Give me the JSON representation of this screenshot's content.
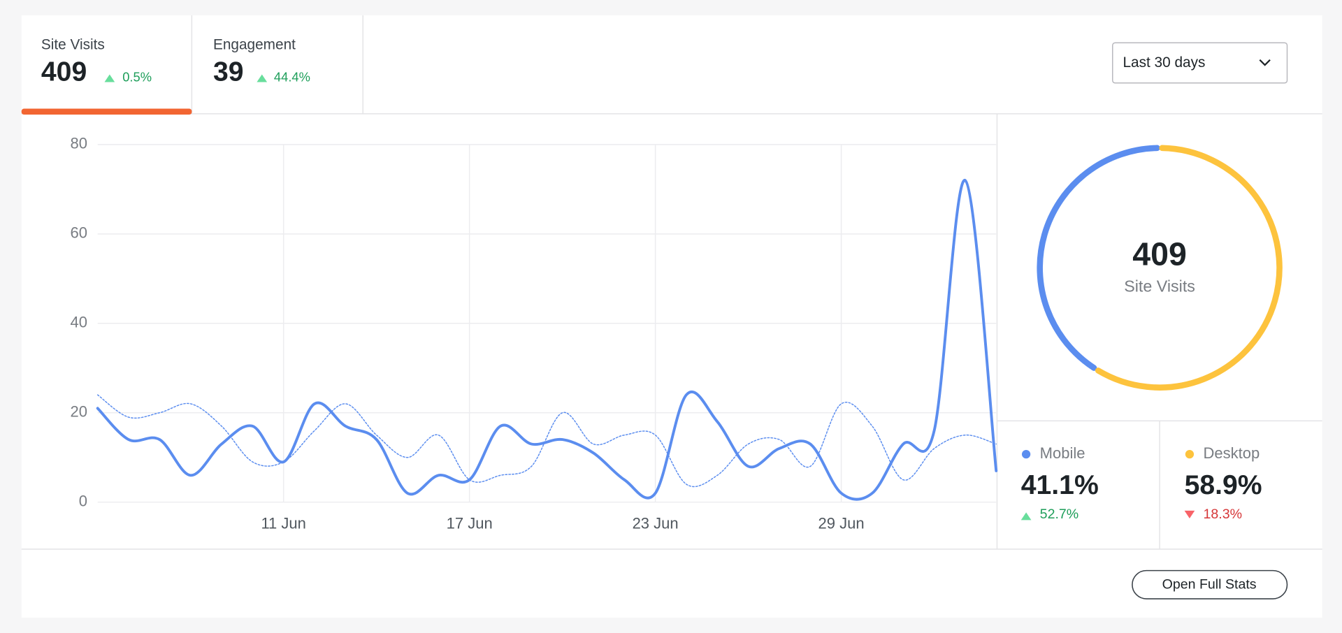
{
  "tabs": [
    {
      "label": "Site Visits",
      "value": "409",
      "change": "0.5%"
    },
    {
      "label": "Engagement",
      "value": "39",
      "change": "44.4%"
    }
  ],
  "range_select": "Last 30 days",
  "button": "Open Full Stats",
  "chart_data": [
    {
      "type": "line",
      "categories": [
        null,
        null,
        null,
        null,
        null,
        null,
        "11 Jun",
        null,
        null,
        null,
        null,
        null,
        "17 Jun",
        null,
        null,
        null,
        null,
        null,
        "23 Jun",
        null,
        null,
        null,
        null,
        null,
        "29 Jun",
        null,
        null,
        null,
        null,
        null
      ],
      "series": [
        {
          "color": "#5b8def",
          "style": "solid",
          "values": [
            21,
            14,
            14,
            6,
            13,
            17,
            9,
            22,
            17,
            14,
            2,
            6,
            5,
            17,
            13,
            14,
            11,
            5,
            2,
            24,
            18,
            8,
            12,
            13,
            2,
            2,
            13,
            16,
            72,
            7
          ]
        },
        {
          "color": "#5b8def",
          "style": "dotted",
          "values": [
            24,
            19,
            20,
            22,
            17,
            9,
            9,
            16,
            22,
            15,
            10,
            15,
            5,
            6,
            8,
            20,
            13,
            15,
            15,
            4,
            6,
            13,
            14,
            8,
            22,
            17,
            5,
            12,
            15,
            13
          ]
        }
      ],
      "ylim": [
        0,
        80
      ],
      "yticks": [
        0,
        20,
        40,
        60,
        80
      ],
      "grid": true
    },
    {
      "type": "pie",
      "center_value": "409",
      "center_label": "Site Visits",
      "categories": [
        "Mobile",
        "Desktop"
      ],
      "values": [
        41.1,
        58.9
      ],
      "value_labels": [
        "41.1%",
        "58.9%"
      ],
      "colors": [
        "#5b8def",
        "#fdc33d"
      ],
      "change_labels": [
        "52.7%",
        "18.3%"
      ],
      "change_directions": [
        "up",
        "down"
      ]
    }
  ]
}
